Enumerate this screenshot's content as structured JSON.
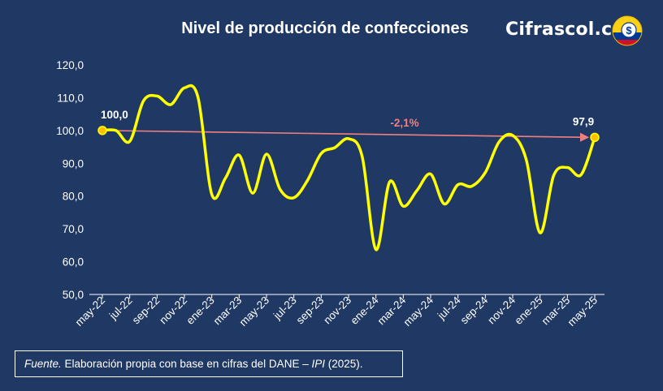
{
  "header": {
    "title": "Nivel de producción de confecciones",
    "brand": "Cifrascol.com"
  },
  "logo": {
    "icon": "dollar-coin-colombia-flag-icon",
    "colors": [
      "#fcd116",
      "#003893",
      "#ce1126"
    ]
  },
  "source_note": {
    "label": "Fuente.",
    "text_before": " Elaboración propia con base en cifras del DANE – ",
    "italic": "IPI",
    "text_after": " (2025)."
  },
  "colors": {
    "background": "#1f3864",
    "line": "#ffff00",
    "trend_arrow": "#f08080",
    "marker": "#ffc000"
  },
  "chart_data": {
    "type": "line",
    "title": "Nivel de producción de confecciones",
    "xlabel": "",
    "ylabel": "",
    "ylim": [
      50,
      120
    ],
    "yticks": [
      "50,0",
      "60,0",
      "70,0",
      "80,0",
      "90,0",
      "100,0",
      "110,0",
      "120,0"
    ],
    "x_tick_labels": [
      "may-22",
      "jul-22",
      "sep-22",
      "nov-22",
      "ene-23",
      "mar-23",
      "may-23",
      "jul-23",
      "sep-23",
      "nov-23",
      "ene-24",
      "mar-24",
      "may-24",
      "jul-24",
      "sep-24",
      "nov-24",
      "ene-25",
      "mar-25",
      "may-25"
    ],
    "grid": false,
    "legend": "none",
    "series": [
      {
        "x": [
          "may-22",
          "jun-22",
          "jul-22",
          "ago-22",
          "sep-22",
          "oct-22",
          "nov-22",
          "dic-22",
          "ene-23",
          "feb-23",
          "mar-23",
          "abr-23",
          "may-23",
          "jun-23",
          "jul-23",
          "ago-23",
          "sep-23",
          "oct-23",
          "nov-23",
          "dic-23",
          "ene-24",
          "feb-24",
          "mar-24",
          "abr-24",
          "may-24",
          "jun-24",
          "jul-24",
          "ago-24",
          "sep-24",
          "oct-24",
          "nov-24",
          "dic-24",
          "ene-25",
          "feb-25",
          "mar-25",
          "abr-25",
          "may-25"
        ],
        "values": [
          100.0,
          100.0,
          96.7,
          109.0,
          110.5,
          107.9,
          113.0,
          110.0,
          80.5,
          85.5,
          92.5,
          80.9,
          92.8,
          82.0,
          79.5,
          84.8,
          93.0,
          94.8,
          97.5,
          92.0,
          63.7,
          84.3,
          76.9,
          81.7,
          86.7,
          77.6,
          83.5,
          83.0,
          87.2,
          96.5,
          98.5,
          91.0,
          68.8,
          86.3,
          88.7,
          86.5,
          97.9
        ]
      }
    ],
    "data_labels": [
      {
        "x": "may-22",
        "text": "100,0"
      },
      {
        "x": "may-25",
        "text": "97,9"
      }
    ],
    "annotations": [
      {
        "type": "arrow",
        "from": {
          "x": "may-22",
          "y": 100.0
        },
        "to": {
          "x": "may-25",
          "y": 97.9
        },
        "text": "-2,1%"
      }
    ]
  }
}
